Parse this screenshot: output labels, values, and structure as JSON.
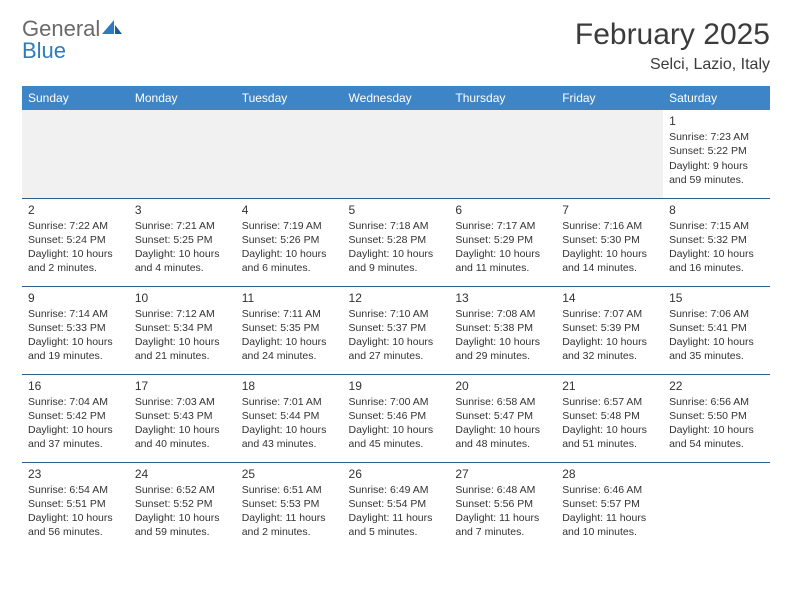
{
  "logo": {
    "text1": "General",
    "text2": "Blue",
    "icon_color": "#2f7bbf",
    "text1_color": "#6a6a6a",
    "text2_color": "#2f7bbf"
  },
  "header": {
    "month_title": "February 2025",
    "location": "Selci, Lazio, Italy"
  },
  "colors": {
    "header_bg": "#3d85c6",
    "header_text": "#ffffff",
    "cell_border": "#2f5d8a",
    "blank_bg": "#f1f1f1",
    "text": "#333333",
    "bg": "#ffffff"
  },
  "day_names": [
    "Sunday",
    "Monday",
    "Tuesday",
    "Wednesday",
    "Thursday",
    "Friday",
    "Saturday"
  ],
  "weeks": [
    [
      null,
      null,
      null,
      null,
      null,
      null,
      {
        "n": "1",
        "sr": "Sunrise: 7:23 AM",
        "ss": "Sunset: 5:22 PM",
        "dl": "Daylight: 9 hours and 59 minutes."
      }
    ],
    [
      {
        "n": "2",
        "sr": "Sunrise: 7:22 AM",
        "ss": "Sunset: 5:24 PM",
        "dl": "Daylight: 10 hours and 2 minutes."
      },
      {
        "n": "3",
        "sr": "Sunrise: 7:21 AM",
        "ss": "Sunset: 5:25 PM",
        "dl": "Daylight: 10 hours and 4 minutes."
      },
      {
        "n": "4",
        "sr": "Sunrise: 7:19 AM",
        "ss": "Sunset: 5:26 PM",
        "dl": "Daylight: 10 hours and 6 minutes."
      },
      {
        "n": "5",
        "sr": "Sunrise: 7:18 AM",
        "ss": "Sunset: 5:28 PM",
        "dl": "Daylight: 10 hours and 9 minutes."
      },
      {
        "n": "6",
        "sr": "Sunrise: 7:17 AM",
        "ss": "Sunset: 5:29 PM",
        "dl": "Daylight: 10 hours and 11 minutes."
      },
      {
        "n": "7",
        "sr": "Sunrise: 7:16 AM",
        "ss": "Sunset: 5:30 PM",
        "dl": "Daylight: 10 hours and 14 minutes."
      },
      {
        "n": "8",
        "sr": "Sunrise: 7:15 AM",
        "ss": "Sunset: 5:32 PM",
        "dl": "Daylight: 10 hours and 16 minutes."
      }
    ],
    [
      {
        "n": "9",
        "sr": "Sunrise: 7:14 AM",
        "ss": "Sunset: 5:33 PM",
        "dl": "Daylight: 10 hours and 19 minutes."
      },
      {
        "n": "10",
        "sr": "Sunrise: 7:12 AM",
        "ss": "Sunset: 5:34 PM",
        "dl": "Daylight: 10 hours and 21 minutes."
      },
      {
        "n": "11",
        "sr": "Sunrise: 7:11 AM",
        "ss": "Sunset: 5:35 PM",
        "dl": "Daylight: 10 hours and 24 minutes."
      },
      {
        "n": "12",
        "sr": "Sunrise: 7:10 AM",
        "ss": "Sunset: 5:37 PM",
        "dl": "Daylight: 10 hours and 27 minutes."
      },
      {
        "n": "13",
        "sr": "Sunrise: 7:08 AM",
        "ss": "Sunset: 5:38 PM",
        "dl": "Daylight: 10 hours and 29 minutes."
      },
      {
        "n": "14",
        "sr": "Sunrise: 7:07 AM",
        "ss": "Sunset: 5:39 PM",
        "dl": "Daylight: 10 hours and 32 minutes."
      },
      {
        "n": "15",
        "sr": "Sunrise: 7:06 AM",
        "ss": "Sunset: 5:41 PM",
        "dl": "Daylight: 10 hours and 35 minutes."
      }
    ],
    [
      {
        "n": "16",
        "sr": "Sunrise: 7:04 AM",
        "ss": "Sunset: 5:42 PM",
        "dl": "Daylight: 10 hours and 37 minutes."
      },
      {
        "n": "17",
        "sr": "Sunrise: 7:03 AM",
        "ss": "Sunset: 5:43 PM",
        "dl": "Daylight: 10 hours and 40 minutes."
      },
      {
        "n": "18",
        "sr": "Sunrise: 7:01 AM",
        "ss": "Sunset: 5:44 PM",
        "dl": "Daylight: 10 hours and 43 minutes."
      },
      {
        "n": "19",
        "sr": "Sunrise: 7:00 AM",
        "ss": "Sunset: 5:46 PM",
        "dl": "Daylight: 10 hours and 45 minutes."
      },
      {
        "n": "20",
        "sr": "Sunrise: 6:58 AM",
        "ss": "Sunset: 5:47 PM",
        "dl": "Daylight: 10 hours and 48 minutes."
      },
      {
        "n": "21",
        "sr": "Sunrise: 6:57 AM",
        "ss": "Sunset: 5:48 PM",
        "dl": "Daylight: 10 hours and 51 minutes."
      },
      {
        "n": "22",
        "sr": "Sunrise: 6:56 AM",
        "ss": "Sunset: 5:50 PM",
        "dl": "Daylight: 10 hours and 54 minutes."
      }
    ],
    [
      {
        "n": "23",
        "sr": "Sunrise: 6:54 AM",
        "ss": "Sunset: 5:51 PM",
        "dl": "Daylight: 10 hours and 56 minutes."
      },
      {
        "n": "24",
        "sr": "Sunrise: 6:52 AM",
        "ss": "Sunset: 5:52 PM",
        "dl": "Daylight: 10 hours and 59 minutes."
      },
      {
        "n": "25",
        "sr": "Sunrise: 6:51 AM",
        "ss": "Sunset: 5:53 PM",
        "dl": "Daylight: 11 hours and 2 minutes."
      },
      {
        "n": "26",
        "sr": "Sunrise: 6:49 AM",
        "ss": "Sunset: 5:54 PM",
        "dl": "Daylight: 11 hours and 5 minutes."
      },
      {
        "n": "27",
        "sr": "Sunrise: 6:48 AM",
        "ss": "Sunset: 5:56 PM",
        "dl": "Daylight: 11 hours and 7 minutes."
      },
      {
        "n": "28",
        "sr": "Sunrise: 6:46 AM",
        "ss": "Sunset: 5:57 PM",
        "dl": "Daylight: 11 hours and 10 minutes."
      },
      null
    ]
  ]
}
